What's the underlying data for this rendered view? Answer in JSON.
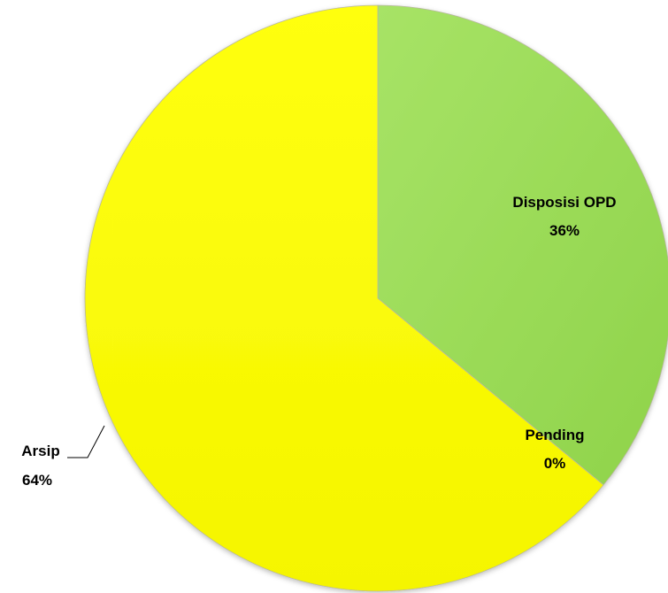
{
  "chart_data": {
    "type": "pie",
    "title": "",
    "slices": [
      {
        "label": "Disposisi OPD",
        "value": 36,
        "value_label": "36%",
        "color": "#9ddd5b"
      },
      {
        "label": "Pending",
        "value": 0,
        "value_label": "0%",
        "color": "#cfe84a"
      },
      {
        "label": "Arsip",
        "value": 64,
        "value_label": "64%",
        "color": "#ffff00"
      }
    ],
    "start_angle": "top (12 o'clock)",
    "direction": "clockwise",
    "legend": "none",
    "data_labels": "category name and percentage"
  }
}
